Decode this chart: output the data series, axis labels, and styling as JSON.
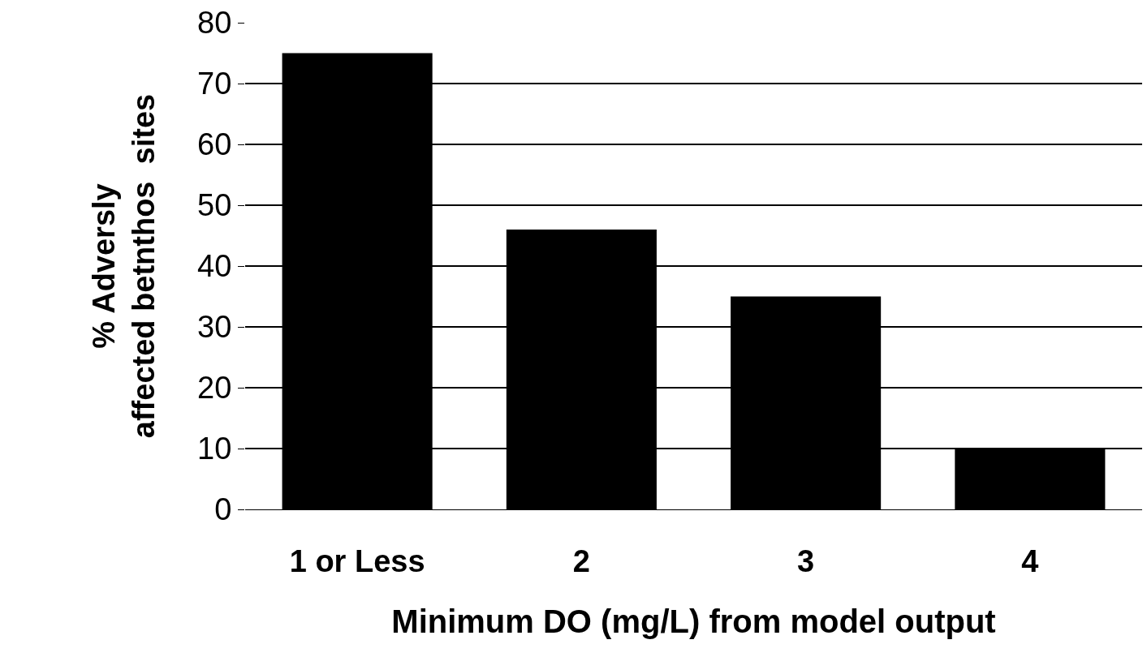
{
  "chart_data": {
    "type": "bar",
    "categories": [
      "1 or Less",
      "2",
      "3",
      "4"
    ],
    "values": [
      75,
      46,
      35,
      10
    ],
    "color": "#000000",
    "xlabel": "Minimum DO (mg/L) from model output",
    "ylabel": "% Adversly affected betnthos  sites",
    "ylim": [
      0,
      80
    ],
    "yticks": [
      0,
      10,
      20,
      30,
      40,
      50,
      60,
      70,
      80
    ],
    "grid": "y"
  }
}
